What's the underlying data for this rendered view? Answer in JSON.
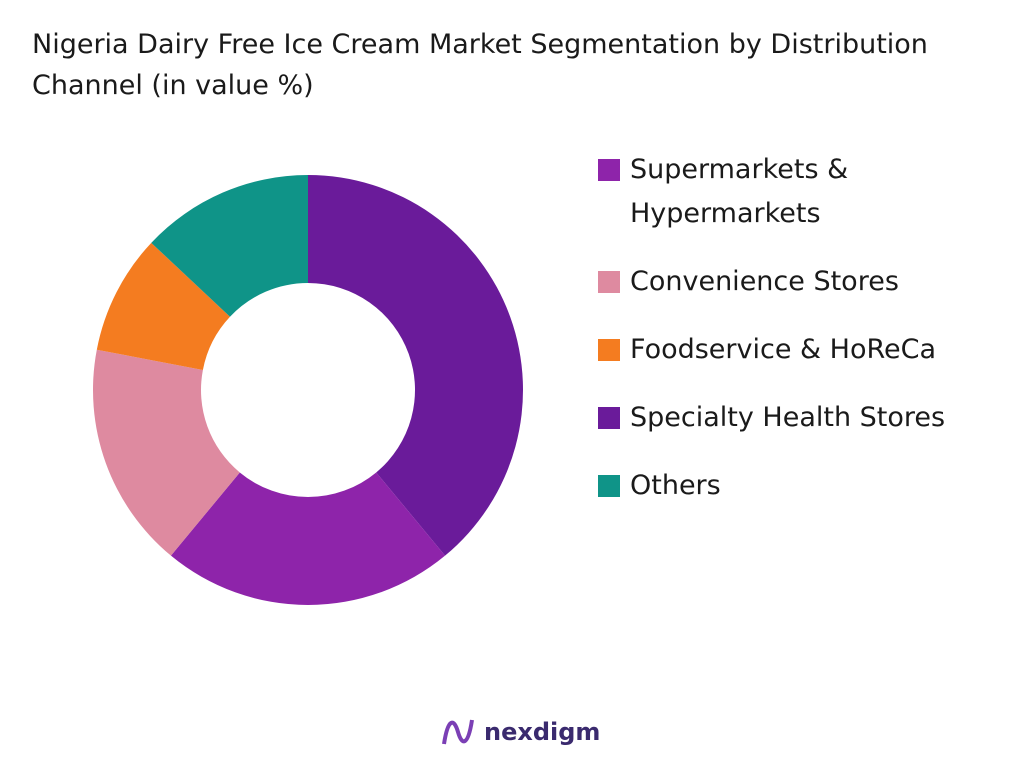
{
  "chart_data": {
    "type": "pie",
    "title": "Nigeria Dairy Free Ice Cream Market Segmentation by Distribution Channel (in value %)",
    "categories": [
      "Supermarkets & Hypermarkets",
      "Convenience Stores",
      "Foodservice & HoReCa",
      "Specialty Health Stores",
      "Others"
    ],
    "values": [
      22,
      17,
      9,
      39,
      13
    ],
    "colors": [
      "#8e24aa",
      "#de8aa0",
      "#f47c20",
      "#6a1b9a",
      "#0f9488"
    ],
    "legend": "right"
  },
  "logo": "nexdigm"
}
